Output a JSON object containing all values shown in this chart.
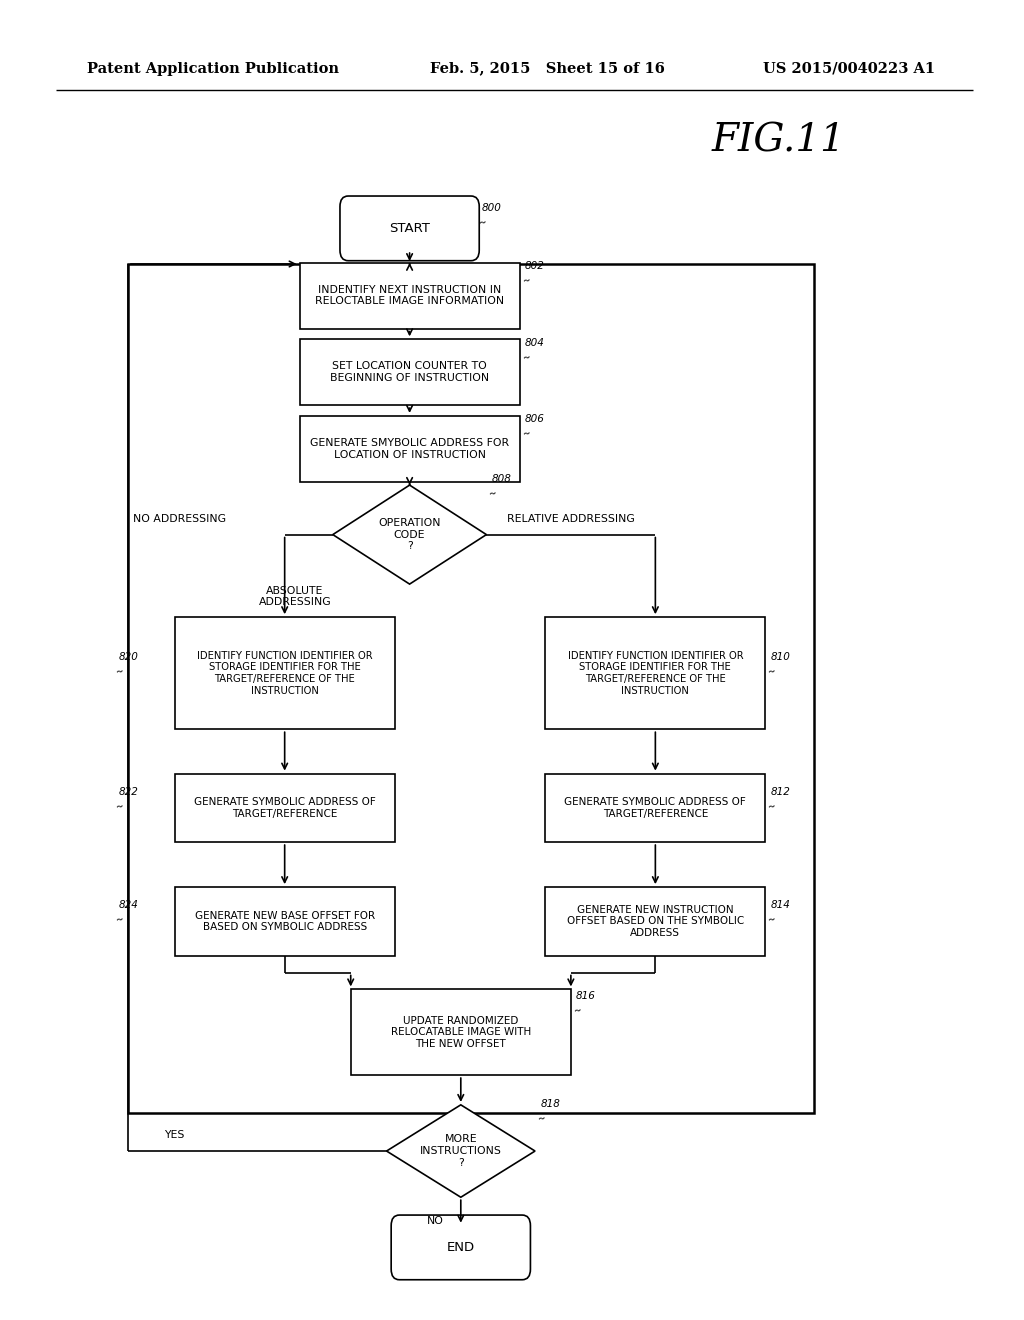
{
  "bg_color": "#ffffff",
  "header_left": "Patent Application Publication",
  "header_mid": "Feb. 5, 2015   Sheet 15 of 16",
  "header_right": "US 2015/0040223 A1",
  "fig_label": "FIG.11",
  "label_start": "START",
  "label_end": "END",
  "label_802": "INDENTIFY NEXT INSTRUCTION IN\nRELOCTABLE IMAGE INFORMATION",
  "label_804": "SET LOCATION COUNTER TO\nBEGINNING OF INSTRUCTION",
  "label_806": "GENERATE SMYBOLIC ADDRESS FOR\nLOCATION OF INSTRUCTION",
  "label_808": "OPERATION\nCODE\n?",
  "label_no_addr": "NO ADDRESSING",
  "label_abs_addr": "ABSOLUTE\nADDRESSING",
  "label_rel_addr": "RELATIVE ADDRESSING",
  "label_820": "IDENTIFY FUNCTION IDENTIFIER OR\nSTORAGE IDENTIFIER FOR THE\nTARGET/REFERENCE OF THE\nINSTRUCTION",
  "label_810": "IDENTIFY FUNCTION IDENTIFIER OR\nSTORAGE IDENTIFIER FOR THE\nTARGET/REFERENCE OF THE\nINSTRUCTION",
  "label_822": "GENERATE SYMBOLIC ADDRESS OF\nTARGET/REFERENCE",
  "label_812": "GENERATE SYMBOLIC ADDRESS OF\nTARGET/REFERENCE",
  "label_824": "GENERATE NEW BASE OFFSET FOR\nBASED ON SYMBOLIC ADDRESS",
  "label_814": "GENERATE NEW INSTRUCTION\nOFFSET BASED ON THE SYMBOLIC\nADDRESS",
  "label_816": "UPDATE RANDOMIZED\nRELOCATABLE IMAGE WITH\nTHE NEW OFFSET",
  "label_818": "MORE\nINSTRUCTIONS\n?",
  "label_yes": "YES",
  "label_no": "NO",
  "ref_800": "800",
  "ref_802": "802",
  "ref_804": "804",
  "ref_806": "806",
  "ref_808": "808",
  "ref_810": "810",
  "ref_812": "812",
  "ref_814": "814",
  "ref_816": "816",
  "ref_818": "818",
  "ref_820": "820",
  "ref_822": "822",
  "ref_824": "824"
}
